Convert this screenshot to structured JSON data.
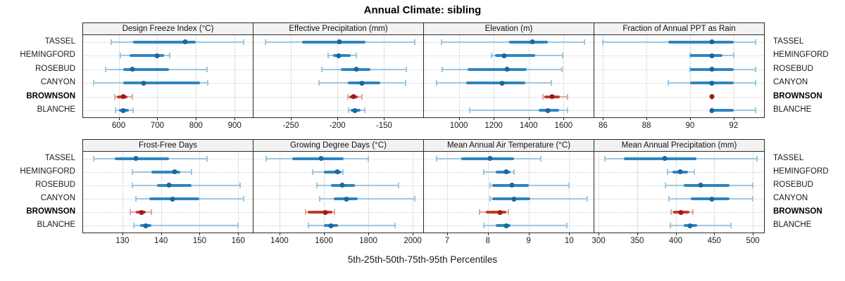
{
  "colors": {
    "normal": {
      "dot": "#17689f",
      "iqr": "#2e85c0",
      "whisker": "#9cc6e2"
    },
    "highlight": {
      "dot": "#9e1b1b",
      "iqr": "#c0392b",
      "whisker": "#e0a6a0"
    },
    "strip_bg": "#f2f2f2",
    "panel_border": "#2b2b2b",
    "grid": "#c4c4c4"
  },
  "chart_data": {
    "type": "dotplot",
    "title": "Annual Climate: sibling",
    "xlabel": "5th-25th-50th-75th-95th Percentiles",
    "percentiles": [
      5,
      25,
      50,
      75,
      95
    ],
    "sites": [
      "TASSEL",
      "HEMINGFORD",
      "ROSEBUD",
      "CANYON",
      "BROWNSON",
      "BLANCHE"
    ],
    "highlight_site": "BROWNSON",
    "legend_position": "none",
    "grid": "dotted",
    "rows": [
      {
        "panels": [
          {
            "title": "Design Freeze Index (°C)",
            "xlim": [
              508,
              947
            ],
            "ticks": [
              600,
              700,
              800,
              900
            ],
            "values": [
              [
                580,
                637,
                773,
                800,
                923
              ],
              [
                605,
                629,
                700,
                717,
                732
              ],
              [
                567,
                611,
                635,
                731,
                829
              ],
              [
                536,
                612,
                664,
                810,
                830
              ],
              [
                590,
                596,
                611,
                622,
                635
              ],
              [
                591,
                600,
                611,
                626,
                637
              ]
            ]
          },
          {
            "title": "Effective Precipitation (mm)",
            "xlim": [
              -290,
              -108
            ],
            "ticks": [
              -250,
              -200,
              -150
            ],
            "values": [
              [
                -277,
                -238,
                -198,
                -170,
                -117
              ],
              [
                -210,
                -205,
                -199,
                -186,
                -180
              ],
              [
                -217,
                -196,
                -180,
                -165,
                -126
              ],
              [
                -220,
                -189,
                -174,
                -154,
                -127
              ],
              [
                -189,
                -187,
                -183,
                -178,
                -174
              ],
              [
                -188,
                -186,
                -181,
                -175,
                -171
              ]
            ]
          },
          {
            "title": "Elevation (m)",
            "xlim": [
              800,
              1772
            ],
            "ticks": [
              1000,
              1200,
              1400,
              1600
            ],
            "values": [
              [
                900,
                1290,
                1420,
                1510,
                1720
              ],
              [
                1189,
                1206,
                1258,
                1436,
                1596
              ],
              [
                903,
                1049,
                1276,
                1389,
                1589
              ],
              [
                872,
                1043,
                1249,
                1380,
                1529
              ],
              [
                1480,
                1490,
                1535,
                1580,
                1622
              ],
              [
                1063,
                1456,
                1509,
                1576,
                1623
              ]
            ]
          },
          {
            "title": "Fraction of Annual PPT as Rain",
            "xlim": [
              85.6,
              93.4
            ],
            "ticks": [
              86,
              88,
              90,
              92
            ],
            "values": [
              [
                86,
                89,
                91,
                92,
                93
              ],
              [
                90,
                90,
                91,
                91.5,
                92
              ],
              [
                90,
                90,
                91,
                92,
                93
              ],
              [
                89,
                90,
                91,
                92,
                93
              ],
              [
                91,
                91,
                91,
                91,
                91
              ],
              [
                91,
                91,
                91,
                92,
                93
              ]
            ]
          }
        ]
      },
      {
        "panels": [
          {
            "title": "Frost-Free Days",
            "xlim": [
              119.8,
              163.8
            ],
            "ticks": [
              130,
              140,
              150,
              160
            ],
            "values": [
              [
                122.5,
                128,
                133.5,
                142,
                152
              ],
              [
                132.5,
                137.5,
                143.5,
                145,
                148
              ],
              [
                132.5,
                139,
                142,
                148,
                160.5
              ],
              [
                133.5,
                137,
                143,
                150,
                161.5
              ],
              [
                132,
                133.5,
                135,
                136,
                137.5
              ],
              [
                133,
                134.5,
                136,
                137.5,
                160
              ]
            ]
          },
          {
            "title": "Growing Degree Days (°C)",
            "xlim": [
              1283,
              2047
            ],
            "ticks": [
              1400,
              1600,
              1800,
              2000
            ],
            "values": [
              [
                1340,
                1457,
                1586,
                1690,
                1800
              ],
              [
                1548,
                1600,
                1660,
                1678,
                1685
              ],
              [
                1567,
                1631,
                1684,
                1741,
                1937
              ],
              [
                1580,
                1643,
                1700,
                1751,
                2010
              ],
              [
                1518,
                1528,
                1605,
                1637,
                1648
              ],
              [
                1530,
                1600,
                1632,
                1662,
                1920
              ]
            ]
          },
          {
            "title": "Mean Annual Air Temperature (°C)",
            "xlim": [
              6.43,
              10.6
            ],
            "ticks": [
              7,
              8,
              9,
              10
            ],
            "values": [
              [
                6.75,
                7.35,
                8.05,
                8.65,
                9.3
              ],
              [
                7.9,
                8.2,
                8.45,
                8.55,
                8.65
              ],
              [
                8.05,
                8.1,
                8.6,
                9.0,
                10.0
              ],
              [
                8.05,
                8.1,
                8.65,
                9.05,
                10.45
              ],
              [
                7.8,
                7.95,
                8.3,
                8.45,
                8.5
              ],
              [
                7.9,
                8.2,
                8.45,
                8.55,
                9.95
              ]
            ]
          },
          {
            "title": "Mean Annual Precipitation (mm)",
            "xlim": [
              294.5,
              514.5
            ],
            "ticks": [
              300,
              350,
              400,
              450,
              500
            ],
            "values": [
              [
                308,
                333,
                386,
                427,
                505
              ],
              [
                389,
                396,
                406,
                416,
                424
              ],
              [
                387,
                410,
                432,
                470,
                500
              ],
              [
                391,
                420,
                447,
                470,
                500
              ],
              [
                394,
                397,
                407,
                418,
                422
              ],
              [
                393,
                410,
                419,
                428,
                472
              ]
            ]
          }
        ]
      }
    ]
  }
}
